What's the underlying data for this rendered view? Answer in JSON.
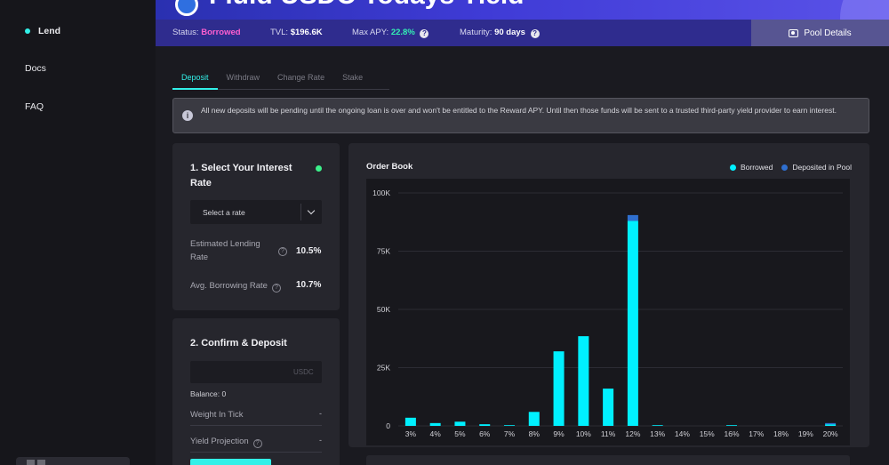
{
  "sidebar": {
    "items": [
      {
        "label": "Lend",
        "active": true
      },
      {
        "label": "Docs",
        "active": false
      },
      {
        "label": "FAQ",
        "active": false
      }
    ]
  },
  "hero": {
    "title": "Fluid USDC Todays Yield"
  },
  "status": {
    "status_label": "Status:",
    "status_value": "Borrowed",
    "tvl_label": "TVL:",
    "tvl_value": "$196.6K",
    "apy_label": "Max APY:",
    "apy_value": "22.8%",
    "maturity_label": "Maturity:",
    "maturity_value": "90 days",
    "pool_details_label": "Pool Details"
  },
  "tabs": [
    {
      "label": "Deposit",
      "active": true
    },
    {
      "label": "Withdraw",
      "active": false
    },
    {
      "label": "Change Rate",
      "active": false
    },
    {
      "label": "Stake",
      "active": false
    }
  ],
  "notice": {
    "text": "All new deposits will be pending until the ongoing loan is over and won't be entitled to the Reward APY. Until then those funds will be sent to a trusted third-party yield provider to earn interest."
  },
  "rate_card": {
    "title": "1. Select Your Interest Rate",
    "select_placeholder": "Select a rate",
    "est_label": "Estimated Lending Rate",
    "est_value": "10.5%",
    "avg_label": "Avg. Borrowing Rate",
    "avg_value": "10.7%"
  },
  "deposit_card": {
    "title": "2. Confirm & Deposit",
    "amount_value": "",
    "currency": "USDC",
    "balance": "Balance: 0",
    "weight_label": "Weight In Tick",
    "weight_value": "-",
    "yield_label": "Yield Projection",
    "yield_value": "-"
  },
  "colors": {
    "accent": "#32f0e8",
    "borrowed": "#00f0ff",
    "deposited": "#2f6fcf"
  },
  "chart_data": {
    "type": "bar",
    "title": "Order Book",
    "categories": [
      "3%",
      "4%",
      "5%",
      "6%",
      "7%",
      "8%",
      "9%",
      "10%",
      "11%",
      "12%",
      "13%",
      "14%",
      "15%",
      "16%",
      "17%",
      "18%",
      "19%",
      "20%"
    ],
    "series": [
      {
        "name": "Borrowed",
        "values": [
          3500,
          1200,
          1800,
          700,
          300,
          6000,
          32000,
          38500,
          16000,
          88000,
          300,
          0,
          0,
          300,
          0,
          0,
          0,
          700
        ]
      },
      {
        "name": "Deposited in Pool",
        "values": [
          0,
          0,
          0,
          0,
          0,
          0,
          0,
          0,
          0,
          2500,
          0,
          0,
          0,
          0,
          0,
          0,
          0,
          500
        ]
      }
    ],
    "stacked": true,
    "ylim": [
      0,
      100000
    ],
    "yticks": [
      0,
      25000,
      50000,
      75000,
      100000
    ],
    "ytick_labels": [
      "0",
      "25K",
      "50K",
      "75K",
      "100K"
    ],
    "legend_position": "top-right",
    "grid": true
  }
}
